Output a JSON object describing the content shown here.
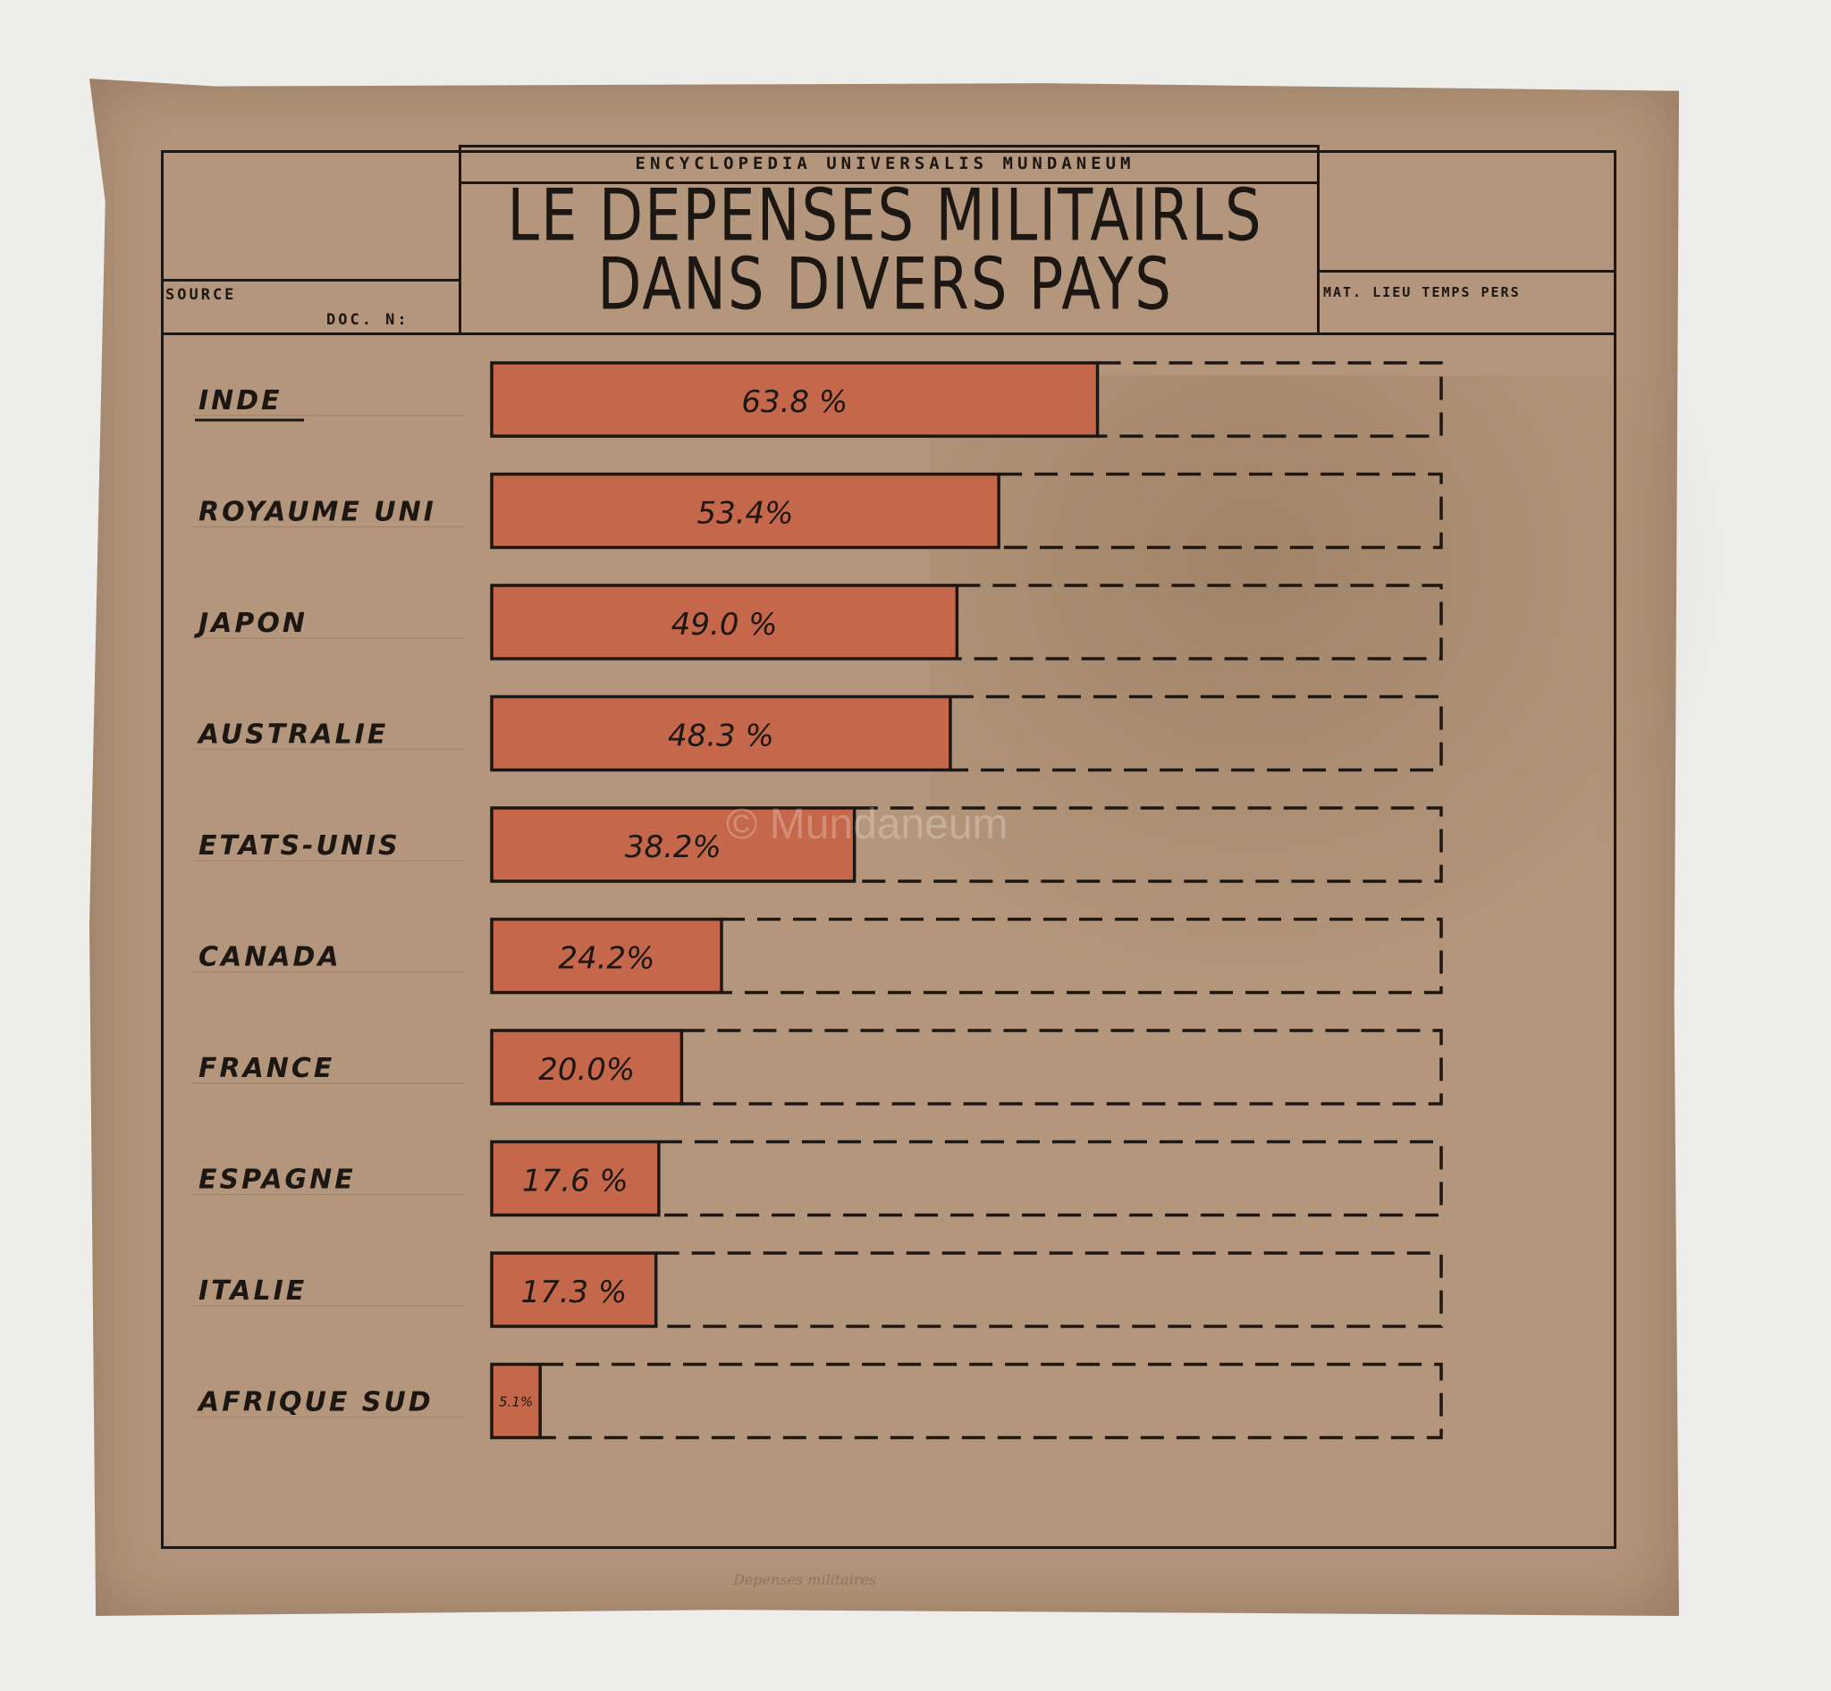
{
  "header": {
    "encyclopedia": "ENCYCLOPEDIA UNIVERSALIS MUNDANEUM",
    "title_line1": "LE DEPENSES MILITAIRLS",
    "title_line2": "DANS DIVERS PAYS",
    "source_label": "SOURCE",
    "doc_label": "DOC. N:",
    "mat_label": "MAT. LIEU TEMPS PERS"
  },
  "watermark": "© Mundaneum",
  "pencil_note": "Depenses militaires",
  "colors": {
    "bar_fill": "#c4674a",
    "ink": "#1c1712",
    "paper": "#b3967b"
  },
  "chart_data": {
    "type": "bar",
    "orientation": "horizontal",
    "categories": [
      "INDE",
      "ROYAUME UNI",
      "JAPON",
      "AUSTRALIE",
      "ETATS-UNIS",
      "CANADA",
      "FRANCE",
      "ESPAGNE",
      "ITALIE",
      "AFRIQUE SUD"
    ],
    "values": [
      63.8,
      53.4,
      49.0,
      48.3,
      38.2,
      24.2,
      20.0,
      17.6,
      17.3,
      5.1
    ],
    "value_labels": [
      "63.8 %",
      "53.4%",
      "49.0 %",
      "48.3 %",
      "38.2%",
      "24.2%",
      "20.0%",
      "17.6 %",
      "17.3 %",
      "5.1%"
    ],
    "xlim": [
      0,
      100
    ],
    "grid": false,
    "legend": "none"
  }
}
